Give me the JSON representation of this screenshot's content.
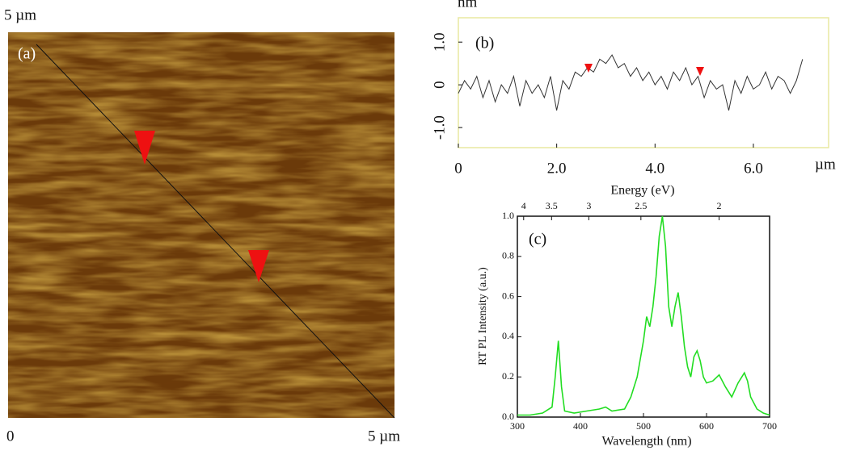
{
  "chart_data": [
    {
      "type": "image",
      "top_label": "5 µm",
      "label": "(a)",
      "origin_label": "0",
      "right_label": "5 µm"
    },
    {
      "type": "line",
      "label": "(b)",
      "ylabel": "nm",
      "xlabel": "µm",
      "x": [
        0,
        0.125,
        0.25,
        0.375,
        0.5,
        0.625,
        0.75,
        0.875,
        1,
        1.125,
        1.25,
        1.375,
        1.5,
        1.625,
        1.75,
        1.875,
        2,
        2.125,
        2.25,
        2.375,
        2.5,
        2.625,
        2.75,
        2.875,
        3,
        3.125,
        3.25,
        3.375,
        3.5,
        3.625,
        3.75,
        3.875,
        4,
        4.125,
        4.25,
        4.375,
        4.5,
        4.625,
        4.75,
        4.875,
        5,
        5.125,
        5.25,
        5.375,
        5.5,
        5.625,
        5.75,
        5.875,
        6,
        6.125,
        6.25,
        6.375,
        6.5,
        6.625,
        6.75,
        6.875,
        7
      ],
      "series": [
        {
          "color": "#333333",
          "values": [
            -0.2,
            0.1,
            -0.1,
            0.2,
            -0.3,
            0.1,
            -0.4,
            0.0,
            -0.2,
            0.2,
            -0.5,
            0.1,
            -0.2,
            0.0,
            -0.3,
            0.2,
            -0.6,
            0.1,
            -0.1,
            0.3,
            0.2,
            0.4,
            0.3,
            0.6,
            0.5,
            0.7,
            0.4,
            0.5,
            0.2,
            0.4,
            0.1,
            0.3,
            0.0,
            0.2,
            -0.1,
            0.3,
            0.1,
            0.4,
            0.0,
            0.2,
            -0.3,
            0.1,
            -0.1,
            0.0,
            -0.6,
            0.1,
            -0.2,
            0.2,
            -0.1,
            0.0,
            0.3,
            -0.1,
            0.2,
            0.1,
            -0.2,
            0.1,
            0.6
          ]
        }
      ],
      "xlim": [
        0,
        7.53
      ],
      "ylim": [
        -1.47,
        1.57
      ],
      "xticks": [
        0,
        {
          "value": 2,
          "label": "2.0"
        },
        {
          "value": 4,
          "label": "4.0"
        },
        {
          "value": 6,
          "label": "6.0"
        }
      ],
      "yticks": [
        {
          "value": 1,
          "label": "1.0"
        },
        0,
        {
          "value": -1,
          "label": "-1.0"
        }
      ]
    },
    {
      "type": "line",
      "label": "(c)",
      "ylabel": "RT PL Intensity (a.u.)",
      "xlabel": "Wavelength (nm)",
      "x2label": "Energy (eV)",
      "x": [
        300,
        320,
        340,
        355,
        360,
        365,
        370,
        375,
        390,
        410,
        430,
        440,
        450,
        470,
        480,
        490,
        500,
        505,
        510,
        515,
        520,
        525,
        530,
        535,
        540,
        545,
        550,
        555,
        560,
        565,
        570,
        575,
        580,
        585,
        590,
        595,
        600,
        610,
        620,
        630,
        640,
        650,
        660,
        665,
        670,
        680,
        690,
        700
      ],
      "series": [
        {
          "color": "#22dd22",
          "values": [
            0.01,
            0.01,
            0.02,
            0.05,
            0.2,
            0.38,
            0.15,
            0.03,
            0.02,
            0.03,
            0.04,
            0.05,
            0.03,
            0.04,
            0.1,
            0.2,
            0.38,
            0.5,
            0.45,
            0.55,
            0.7,
            0.9,
            1.0,
            0.85,
            0.55,
            0.45,
            0.55,
            0.62,
            0.5,
            0.35,
            0.25,
            0.2,
            0.3,
            0.33,
            0.28,
            0.2,
            0.17,
            0.18,
            0.21,
            0.15,
            0.1,
            0.17,
            0.22,
            0.18,
            0.1,
            0.04,
            0.02,
            0.01
          ]
        }
      ],
      "xlim": [
        300,
        700
      ],
      "ylim": [
        0,
        1
      ],
      "xticks": [
        300,
        400,
        500,
        600,
        700
      ],
      "yticks": [
        {
          "value": 0,
          "label": "0.0"
        },
        0.2,
        0.4,
        0.6,
        0.8,
        {
          "value": 1,
          "label": "1.0"
        }
      ],
      "x2lim": [
        4.13,
        1.77
      ],
      "x2ticks": [
        4,
        3.5,
        3,
        2.5,
        2
      ]
    }
  ]
}
